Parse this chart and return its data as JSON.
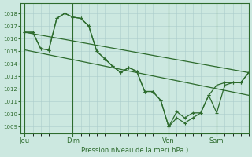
{
  "bg_color": "#cce8e0",
  "grid_color": "#aacccc",
  "line_color": "#2d6b2d",
  "ylabel": "Pression niveau de la mer( hPa )",
  "ylim": [
    1008.5,
    1018.8
  ],
  "yticks": [
    1009,
    1010,
    1011,
    1012,
    1013,
    1014,
    1015,
    1016,
    1017,
    1018
  ],
  "xtick_labels": [
    "Jeu",
    "Dim",
    "Ven",
    "Sam"
  ],
  "xtick_pos": [
    0,
    36,
    108,
    144
  ],
  "xlim": [
    -3,
    168
  ],
  "vline_pos": [
    0,
    36,
    108,
    144
  ],
  "trend1_x": [
    0,
    168
  ],
  "trend1_y": [
    1016.5,
    1013.3
  ],
  "trend2_x": [
    0,
    168
  ],
  "trend2_y": [
    1015.1,
    1011.5
  ],
  "wave1_x": [
    0,
    6,
    12,
    18,
    24,
    30,
    36,
    42,
    48,
    54,
    60,
    66,
    72,
    78,
    84,
    90,
    96,
    102,
    108,
    114,
    120,
    126,
    132,
    138,
    144,
    150,
    156,
    162,
    168
  ],
  "wave1_y": [
    1016.5,
    1016.5,
    1015.2,
    1015.1,
    1017.6,
    1018.0,
    1017.7,
    1017.6,
    1017.0,
    1015.0,
    1014.4,
    1013.8,
    1013.3,
    1013.7,
    1013.4,
    1011.8,
    1011.8,
    1011.1,
    1009.0,
    1010.2,
    1009.7,
    1010.1,
    1010.1,
    1011.5,
    1012.3,
    1012.5,
    1012.5,
    1012.5,
    1013.3
  ],
  "wave2_x": [
    0,
    6,
    12,
    18,
    24,
    30,
    36,
    42,
    48,
    54,
    60,
    66,
    72,
    78,
    84,
    90,
    96,
    102,
    108,
    114,
    120,
    126,
    132,
    138,
    144,
    150,
    156,
    162,
    168
  ],
  "wave2_y": [
    1016.5,
    1016.5,
    1015.2,
    1015.1,
    1017.6,
    1018.0,
    1017.7,
    1017.6,
    1017.0,
    1015.0,
    1014.4,
    1013.8,
    1013.3,
    1013.7,
    1013.4,
    1011.8,
    1011.8,
    1011.1,
    1009.0,
    1009.7,
    1009.3,
    1009.7,
    1010.1,
    1011.5,
    1010.1,
    1012.3,
    1012.5,
    1012.5,
    1013.3
  ]
}
